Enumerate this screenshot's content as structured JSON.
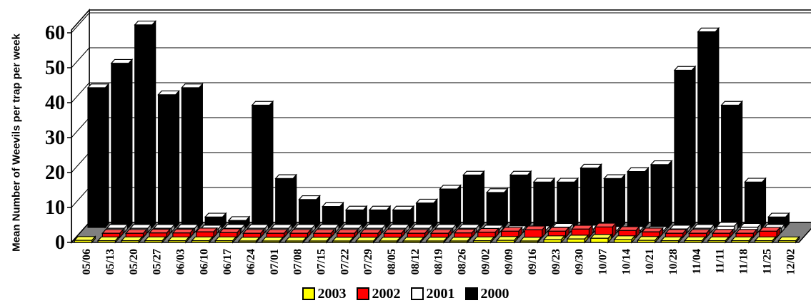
{
  "chart_data": {
    "type": "bar",
    "title": "",
    "xlabel": "",
    "ylabel": "Mean Number of Weevils per trap per week",
    "ylim": [
      0,
      60
    ],
    "yticks": [
      0,
      10,
      20,
      30,
      40,
      50,
      60
    ],
    "grid": true,
    "legend_position": "bottom",
    "categories": [
      "05/06",
      "05/13",
      "05/20",
      "05/27",
      "06/03",
      "06/10",
      "06/17",
      "06/24",
      "07/01",
      "07/08",
      "07/15",
      "07/22",
      "07/29",
      "08/05",
      "08/12",
      "08/19",
      "08/26",
      "09/02",
      "09/09",
      "09/16",
      "09/23",
      "09/30",
      "10/07",
      "10/14",
      "10/21",
      "10/28",
      "11/04",
      "11/11",
      "11/18",
      "11/25",
      "12/02"
    ],
    "series": [
      {
        "name": "2003",
        "color": "#ffff00",
        "values": [
          0.6,
          0.5,
          0.5,
          0.5,
          0.5,
          0.5,
          0.5,
          0.4,
          0.4,
          0.4,
          0.4,
          0.4,
          0.4,
          0.4,
          0.4,
          0.4,
          0.4,
          0.5,
          0.6,
          0.4,
          0.8,
          1.0,
          1.2,
          0.8,
          0.6,
          0.5,
          0.5,
          0.5,
          0.5,
          0.5,
          0.5
        ]
      },
      {
        "name": "2002",
        "color": "#ff0000",
        "values": [
          0.0,
          1.2,
          1.2,
          1.3,
          1.3,
          1.6,
          1.4,
          1.2,
          1.2,
          1.2,
          1.2,
          1.2,
          1.2,
          1.2,
          1.2,
          1.2,
          1.3,
          1.5,
          1.8,
          2.2,
          1.8,
          2.4,
          3.0,
          2.0,
          1.6,
          1.2,
          1.2,
          1.2,
          1.2,
          1.8,
          0.0
        ]
      },
      {
        "name": "2001",
        "color": "#ffffff",
        "values": [
          0.0,
          1.2,
          1.2,
          1.2,
          1.2,
          1.0,
          1.2,
          1.2,
          1.2,
          1.2,
          1.2,
          1.2,
          1.2,
          1.2,
          1.2,
          1.2,
          1.2,
          1.0,
          0.8,
          0.8,
          1.5,
          1.0,
          0.6,
          0.6,
          0.6,
          1.0,
          1.2,
          1.8,
          1.5,
          1.2,
          0.0
        ]
      },
      {
        "name": "2000",
        "color": "#000000",
        "values": [
          40,
          47,
          58,
          38,
          40,
          3,
          2,
          35,
          14,
          8,
          6,
          5,
          5,
          5,
          7,
          11,
          15,
          10,
          15,
          13,
          13,
          17,
          14,
          16,
          18,
          45,
          56,
          35,
          13,
          3,
          0
        ]
      }
    ]
  }
}
